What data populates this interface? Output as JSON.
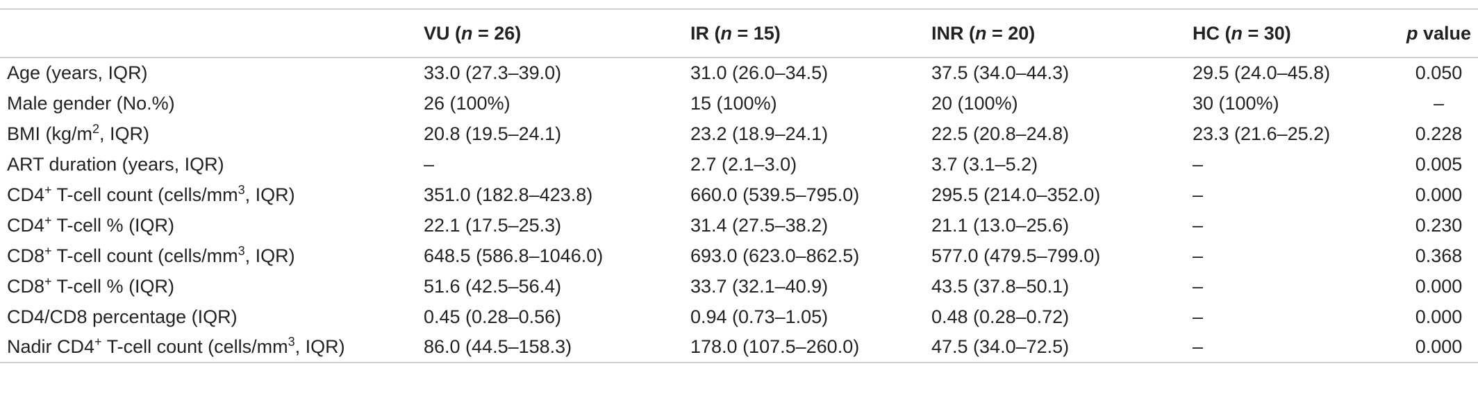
{
  "table": {
    "headers": [
      {
        "label": "",
        "italic": false
      },
      {
        "pre": "VU (",
        "ital": "n",
        "post": " = 26)"
      },
      {
        "pre": "IR (",
        "ital": "n",
        "post": " = 15)"
      },
      {
        "pre": "INR (",
        "ital": "n",
        "post": " = 20)"
      },
      {
        "pre": "HC (",
        "ital": "n",
        "post": " = 30)"
      },
      {
        "pre": "",
        "ital": "p",
        "post": " value"
      }
    ],
    "rows": [
      {
        "label_pre": "Age (years, IQR)",
        "label_sup": "",
        "label_post": "",
        "cells": [
          "33.0 (27.3–39.0)",
          "31.0 (26.0–34.5)",
          "37.5 (34.0–44.3)",
          "29.5 (24.0–45.8)",
          "0.050"
        ]
      },
      {
        "label_pre": "Male gender (No.%)",
        "label_sup": "",
        "label_post": "",
        "cells": [
          "26 (100%)",
          "15 (100%)",
          "20 (100%)",
          "30 (100%)",
          "–"
        ]
      },
      {
        "label_pre": "BMI (kg/m",
        "label_sup": "2",
        "label_post": ", IQR)",
        "cells": [
          "20.8 (19.5–24.1)",
          "23.2 (18.9–24.1)",
          "22.5 (20.8–24.8)",
          "23.3 (21.6–25.2)",
          "0.228"
        ]
      },
      {
        "label_pre": "ART duration (years, IQR)",
        "label_sup": "",
        "label_post": "",
        "cells": [
          "–",
          "2.7 (2.1–3.0)",
          "3.7 (3.1–5.2)",
          "–",
          "0.005"
        ]
      },
      {
        "label_pre": "CD4",
        "label_sup": "+",
        "label_post": " T-cell count (cells/mm",
        "label_sup2": "3",
        "label_post2": ", IQR)",
        "cells": [
          "351.0 (182.8–423.8)",
          "660.0 (539.5–795.0)",
          "295.5 (214.0–352.0)",
          "–",
          "0.000"
        ]
      },
      {
        "label_pre": "CD4",
        "label_sup": "+",
        "label_post": " T-cell % (IQR)",
        "cells": [
          "22.1 (17.5–25.3)",
          "31.4 (27.5–38.2)",
          "21.1 (13.0–25.6)",
          "–",
          "0.230"
        ]
      },
      {
        "label_pre": "CD8",
        "label_sup": "+",
        "label_post": " T-cell count (cells/mm",
        "label_sup2": "3",
        "label_post2": ", IQR)",
        "cells": [
          "648.5 (586.8–1046.0)",
          "693.0 (623.0–862.5)",
          "577.0 (479.5–799.0)",
          "–",
          "0.368"
        ]
      },
      {
        "label_pre": "CD8",
        "label_sup": "+",
        "label_post": " T-cell % (IQR)",
        "cells": [
          "51.6 (42.5–56.4)",
          "33.7 (32.1–40.9)",
          "43.5 (37.8–50.1)",
          "–",
          "0.000"
        ]
      },
      {
        "label_pre": "CD4/CD8 percentage (IQR)",
        "label_sup": "",
        "label_post": "",
        "cells": [
          "0.45 (0.28–0.56)",
          "0.94 (0.73–1.05)",
          "0.48 (0.28–0.72)",
          "–",
          "0.000"
        ]
      },
      {
        "label_pre": "Nadir CD4",
        "label_sup": "+",
        "label_post": " T-cell count (cells/mm",
        "label_sup2": "3",
        "label_post2": ", IQR)",
        "cells": [
          "86.0 (44.5–158.3)",
          "178.0 (107.5–260.0)",
          "47.5 (34.0–72.5)",
          "–",
          "0.000"
        ]
      }
    ]
  }
}
